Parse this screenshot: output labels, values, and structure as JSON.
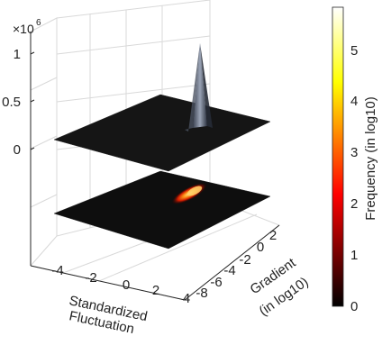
{
  "chart_data": {
    "type": "surface",
    "z_axis": {
      "exponent_label": "×10",
      "exponent_power": "6",
      "tick_labels": [
        "1",
        "0.5",
        "0"
      ],
      "ticks": [
        1,
        0.5,
        0
      ]
    },
    "x_axis": {
      "label_line1": "Standardized",
      "label_line2": "Fluctuation",
      "tick_labels": [
        "-4",
        "-2",
        "0",
        "2",
        "4"
      ],
      "ticks": [
        -4,
        -2,
        0,
        2,
        4
      ]
    },
    "y_axis": {
      "label_line1": "Gradient",
      "label_line2": "(in log10)",
      "tick_labels": [
        "-8",
        "-6",
        "-4",
        "-2",
        "0",
        "2"
      ],
      "ticks": [
        -8,
        -6,
        -4,
        -2,
        0,
        2
      ]
    },
    "colorbar": {
      "label": "Frequency (in log10)",
      "tick_labels": [
        "0",
        "1",
        "2",
        "3",
        "4",
        "5"
      ],
      "ticks": [
        0,
        1,
        2,
        3,
        4,
        5
      ],
      "range": [
        0,
        5.8
      ],
      "colormap": "hot"
    },
    "peak": {
      "x": 0,
      "y": 0,
      "z": 1000000
    },
    "colors": {
      "surface": "#151515",
      "grid": "#d9d9d9",
      "hot_low": "#000000",
      "hot_mid": "#ff0000",
      "hot_high": "#ffffff"
    }
  }
}
